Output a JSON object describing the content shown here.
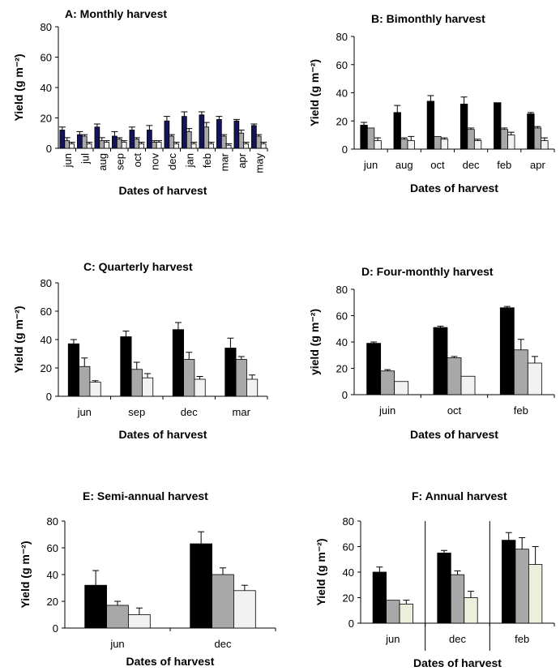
{
  "chart_data": [
    {
      "type": "bar",
      "title": "A: Monthly harvest",
      "xlabel": "Dates  of harvest",
      "ylabel": "Yield  (g m⁻²)",
      "ylim": [
        0,
        80
      ],
      "yticks": [
        0,
        20,
        40,
        60,
        80
      ],
      "categories": [
        "jun",
        "jul",
        "aug",
        "sep",
        "oct",
        "nov",
        "dec",
        "jan",
        "feb",
        "mar",
        "apr",
        "may"
      ],
      "category_label_rotation": "vertical",
      "grid": false,
      "series": [
        {
          "color": "#14145a",
          "values": [
            12,
            9,
            14,
            8,
            12,
            12,
            18,
            21,
            22,
            19,
            18,
            15
          ],
          "errors": [
            2,
            2,
            2,
            3,
            2,
            3,
            3,
            3,
            2,
            2,
            1,
            1
          ]
        },
        {
          "color": "#a8a8a8",
          "values": [
            5,
            8,
            5,
            6,
            6,
            4,
            8,
            11,
            14,
            8,
            10,
            8
          ],
          "errors": [
            2,
            1,
            2,
            1,
            1,
            1,
            1,
            2,
            3,
            1,
            2,
            1
          ]
        },
        {
          "color": "#f2f2f2",
          "values": [
            3,
            3,
            4,
            4,
            3,
            4,
            3,
            3,
            3,
            2,
            3,
            3
          ],
          "errors": [
            1,
            1,
            1,
            1,
            1,
            1,
            1,
            1,
            1,
            1,
            1,
            1
          ]
        }
      ]
    },
    {
      "type": "bar",
      "title": "B: Bimonthly harvest",
      "xlabel": "Dates of harvest",
      "ylabel": "Yield  (g m⁻²)",
      "ylim": [
        0,
        80
      ],
      "yticks": [
        0,
        20,
        40,
        60,
        80
      ],
      "categories": [
        "jun",
        "aug",
        "oct",
        "dec",
        "feb",
        "apr"
      ],
      "grid": false,
      "series": [
        {
          "color": "#000000",
          "values": [
            17,
            26,
            34,
            32,
            33,
            25
          ],
          "errors": [
            2,
            5,
            4,
            5,
            0,
            1
          ]
        },
        {
          "color": "#a8a8a8",
          "values": [
            15,
            7,
            9,
            14,
            14,
            15
          ],
          "errors": [
            0,
            1,
            0,
            1,
            1,
            1
          ]
        },
        {
          "color": "#f2f2f2",
          "values": [
            6,
            6,
            7,
            6,
            10,
            6
          ],
          "errors": [
            2,
            3,
            1,
            1,
            2,
            2
          ]
        }
      ]
    },
    {
      "type": "bar",
      "title": "C: Quarterly harvest",
      "xlabel": "Dates of harvest",
      "ylabel": "Yield  (g m⁻²)",
      "ylim": [
        0,
        80
      ],
      "yticks": [
        0,
        20,
        40,
        60,
        80
      ],
      "categories": [
        "jun",
        "sep",
        "dec",
        "mar"
      ],
      "grid": false,
      "series": [
        {
          "color": "#000000",
          "values": [
            37,
            42,
            47,
            34
          ],
          "errors": [
            3,
            4,
            5,
            7
          ]
        },
        {
          "color": "#a8a8a8",
          "values": [
            21,
            19,
            26,
            26
          ],
          "errors": [
            6,
            5,
            5,
            2
          ]
        },
        {
          "color": "#f2f2f2",
          "values": [
            10,
            13,
            12,
            12
          ],
          "errors": [
            1,
            3,
            2,
            3
          ]
        }
      ]
    },
    {
      "type": "bar",
      "title": "D: Four-monthly harvest",
      "xlabel": "Dates of harvest",
      "ylabel": "yield  (g m⁻²)",
      "ylim": [
        0,
        80
      ],
      "yticks": [
        0,
        20,
        40,
        60,
        80
      ],
      "categories": [
        "juin",
        "oct",
        "feb"
      ],
      "grid": false,
      "series": [
        {
          "color": "#000000",
          "values": [
            39,
            51,
            66
          ],
          "errors": [
            1,
            1,
            1
          ]
        },
        {
          "color": "#a8a8a8",
          "values": [
            18,
            28,
            34
          ],
          "errors": [
            1,
            1,
            8
          ]
        },
        {
          "color": "#f2f2f2",
          "values": [
            10,
            14,
            24
          ],
          "errors": [
            0,
            0,
            5
          ]
        }
      ]
    },
    {
      "type": "bar",
      "title": "E: Semi-annual harvest",
      "xlabel": "Dates of harvest",
      "ylabel": "Yield  (g m⁻²)",
      "ylim": [
        0,
        80
      ],
      "yticks": [
        0,
        20,
        40,
        60,
        80
      ],
      "categories": [
        "jun",
        "dec"
      ],
      "grid": false,
      "series": [
        {
          "color": "#000000",
          "values": [
            32,
            63
          ],
          "errors": [
            11,
            9
          ]
        },
        {
          "color": "#a8a8a8",
          "values": [
            17,
            40
          ],
          "errors": [
            3,
            5
          ]
        },
        {
          "color": "#f2f2f2",
          "values": [
            10,
            28
          ],
          "errors": [
            5,
            4
          ]
        }
      ]
    },
    {
      "type": "bar",
      "title": "F: Annual harvest",
      "xlabel": "Dates of harvest",
      "ylabel": "Yield (g m⁻²)",
      "ylim": [
        0,
        80
      ],
      "yticks": [
        0,
        20,
        40,
        60,
        80
      ],
      "categories": [
        "jun",
        "dec",
        "feb"
      ],
      "category_separators": true,
      "grid": false,
      "series": [
        {
          "color": "#000000",
          "values": [
            40,
            55,
            65
          ],
          "errors": [
            4,
            2,
            6
          ]
        },
        {
          "color": "#a8a8a8",
          "values": [
            18,
            38,
            58
          ],
          "errors": [
            0,
            3,
            9
          ]
        },
        {
          "color": "#eeeedd",
          "values": [
            15,
            20,
            46
          ],
          "errors": [
            3,
            5,
            14
          ]
        }
      ]
    }
  ]
}
